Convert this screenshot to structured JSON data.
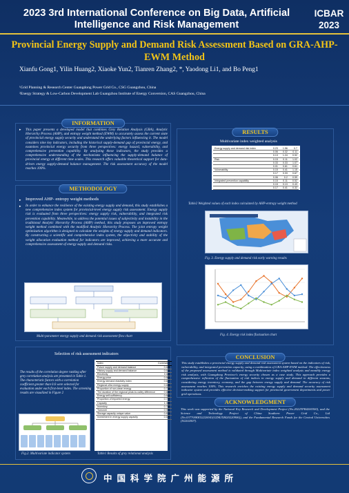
{
  "header": {
    "conference_title": "2023 3rd International Conference on Big Data, Artificial Intelligence and Risk Management",
    "badge_line1": "ICBAR",
    "badge_line2": "2023"
  },
  "paper": {
    "title": "Provincial Energy Supply and Demand Risk Assessment Based on GRA-AHP-EWM Method",
    "authors": "Xianfu Gong1, Yilin Huang2, Xiaoke Yun2, Tianren Zhang2, *, Yaodong Li1, and Bo Peng1",
    "affiliation1": "¹Grid Planning & Research Center Guangdong Power Grid Co.,  CSG Guangzhou, China",
    "affiliation2": "²Energy Strategy & Low-Carbon Development Lab Guangzhou Institute of Energy Conversion, CAS Guangzhou, China"
  },
  "information": {
    "heading": "INFORMATION",
    "text": "This paper presents a developed model that combines Grey Relation Analysis (GRA), Analytic Hierarchy Process (AHP), and entropy weight method (EWM) to accurately assess the current state of provincial energy supply security and understand the underlying factors influencing it. The model considers nine key indicators, including the historical supply-demand gap of provincial energy, and examines provincial energy security from three perspectives: energy hazard, vulnerability, and comprehensive prevention capability. By analyzing these indicators, the study provides a comprehensive understanding of the mechanisms influencing the supply-demand balance of provincial energy at different time scales. This research offers valuable theoretical support for data-driven energy supply-demand balance management. The risk assessment accuracy of the model reaches 100%."
  },
  "methodology": {
    "heading": "METHODOLOGY",
    "item1": "Improved AHP- entropy weight methods",
    "text": "In order to enhance the resilience of the existing energy supply and demand, this study establishes a new comprehensive index system for provincial-level energy supply risk assessment. Energy supply risk is evaluated from three perspectives: energy supply risk, vulnerability, and integrated risk prevention capability. Meanwhile, to address the potential issues of subjectivity and instability in the traditional Analytic Hierarchy Process (AHP) method, this study proposes an improved entropy weight method combined with the modified Analytic Hierarchy Process. The joint entropy weight optimization algorithm is designed to calculate the weights of energy supply and demand indicators. By constructing a scientific and comprehensive index system, the objectivity and stability of the weight allocation evaluation method for indicators are improved, achieving a more accurate and comprehensive assessment of energy supply and demand risks.",
    "figure_caption": "Multi-parameter energy supply and demand risk assessment flow chart"
  },
  "selection": {
    "heading": "Selection of risk assessment indicators",
    "text": "The results of the correlation degree ranking after grey correlation analysis are presented in Table 1. The characteristic factors with a correlation coefficient greater than 0.6 were selected for evaluation under each first-level index. The screening results are visualized in Figure 2",
    "fig2_caption": "Fig.2. Multivariate indicator system",
    "table1_caption": "Table1 Results of grey relational analysis"
  },
  "results": {
    "heading": "RESULTS",
    "subheading": "Multivariate index weighted analysis",
    "table2_caption": "Table2 Weighted values of each index calculated by AHP-entropy weight method",
    "fig3_caption": "Fig. 3. Energy supply and demand risk early warning results",
    "fig4_caption": "Fig. 4. Energy risk index fluctuation chart"
  },
  "conclusion": {
    "heading": "CONCLUSION",
    "text": "This study establishes a provincial energy supply and demand risk assessment system based on the indicators of risk, vulnerability, and integrated prevention capacity, using a combination of GRA-AHP-EWM method. The effectiveness of the proposed assessment method is validated through Multivariate index weighted analysis and monthly energy risk analysis, with Guangdong Province's energy security chosen as a case study. This approach provides a comprehensive reflection of the fluctuation of risk indices in energy supply and demand in different seasons, considering energy inventory, economy, and the gap between energy supply and demand. The accuracy of risk assessment reaches 100%. This research enriches the existing energy supply and demand security assessment indicator system and provides effective decision-making support for provincial government departments and power grid operations."
  },
  "acknowledgement": {
    "heading": "ACKNOWLEDGMENT",
    "text": "This work was supported by the National Key Research and Development Project (No.2022YFB4200300), and the Science and Technology Project of China Southern Power Grid Co., Ltd (No.037700KK52220041(GDKJXM20220906)), and the Fundamental Research Funds for the Central Universities    (N2202007)."
  },
  "footer": {
    "institution": "中国科学院广州能源所"
  },
  "table2": {
    "rows": [
      {
        "label": "Energy supply and demand risk index",
        "a": "0.23",
        "b": "1.56",
        "c": "0.7"
      },
      {
        "label": "",
        "a": "0.06",
        "b": "0.32",
        "c": "0.11"
      },
      {
        "label": "",
        "a": "0.13",
        "b": "1.24",
        "c": "0.92"
      },
      {
        "label": "Risk",
        "a": "0.15",
        "b": "0.11",
        "c": "1.02"
      },
      {
        "label": "",
        "a": "0.33",
        "b": "0.33",
        "c": "1.07"
      },
      {
        "label": "",
        "a": "0.01",
        "b": "0.61",
        "c": "0.61"
      },
      {
        "label": "Vulnerability",
        "a": "0.15",
        "b": "0.41",
        "c": "1.15"
      },
      {
        "label": "",
        "a": "0.17",
        "b": "0.33",
        "c": "0.67"
      },
      {
        "label": "",
        "a": "0.06",
        "b": "0.2",
        "c": "0.59"
      },
      {
        "label": "Integrated prevention capability",
        "a": "0.15",
        "b": "0.11",
        "c": "0.52"
      },
      {
        "label": "",
        "a": "0.15",
        "b": "0.13",
        "c": "0.43"
      },
      {
        "label": "",
        "a": "0.17",
        "b": "0.41",
        "c": "0.32"
      }
    ]
  },
  "table1": {
    "header": [
      "Index",
      "Correlation"
    ],
    "rows": [
      [
        "Future supply and demand balance",
        "0.666"
      ],
      [
        "History supply and demand balance",
        "0.631"
      ],
      [
        "Electricity",
        "0.611"
      ],
      [
        "Energy price",
        "0.601"
      ],
      [
        "Energy demand elasticity index",
        "0.617"
      ],
      [
        "Regional ultra energy supply",
        "0.613"
      ],
      [
        "Proportion of non-clean energy",
        "0.774"
      ],
      [
        "The duration of the regional peak-to-valley difference",
        "0.664"
      ],
      [
        "Energy self-sufficiency",
        "0.641"
      ],
      [
        "Proportion of imported energy",
        "0.735"
      ],
      [
        "Capacity",
        "1.000"
      ],
      [
        "Inventory",
        "0.766"
      ],
      [
        "Turnover",
        "0.970"
      ],
      [
        "Storage capacity unique value",
        "0.878"
      ],
      [
        "Investment in energy supply capacity",
        "0.620"
      ]
    ]
  },
  "chart_data": {
    "type": "line",
    "x": [
      1,
      2,
      3,
      4,
      5,
      6,
      7,
      8,
      9,
      10,
      11,
      12
    ],
    "series": [
      {
        "values": [
          0.58,
          0.42,
          0.3,
          0.34,
          0.46,
          0.62,
          0.7,
          0.6,
          0.44,
          0.38,
          0.52,
          0.66
        ]
      },
      {
        "values": [
          0.4,
          0.36,
          0.48,
          0.56,
          0.4,
          0.34,
          0.46,
          0.58,
          0.66,
          0.5,
          0.4,
          0.42
        ]
      },
      {
        "values": [
          0.26,
          0.3,
          0.24,
          0.2,
          0.28,
          0.36,
          0.3,
          0.26,
          0.32,
          0.4,
          0.34,
          0.3
        ]
      }
    ],
    "colors": [
      "#e8732a",
      "#4a8fd8",
      "#7fb446"
    ],
    "ylim": [
      0,
      0.8
    ]
  },
  "colors": {
    "background": "#163f7e",
    "accent": "#f3c417",
    "rule": "#e7c33b"
  }
}
